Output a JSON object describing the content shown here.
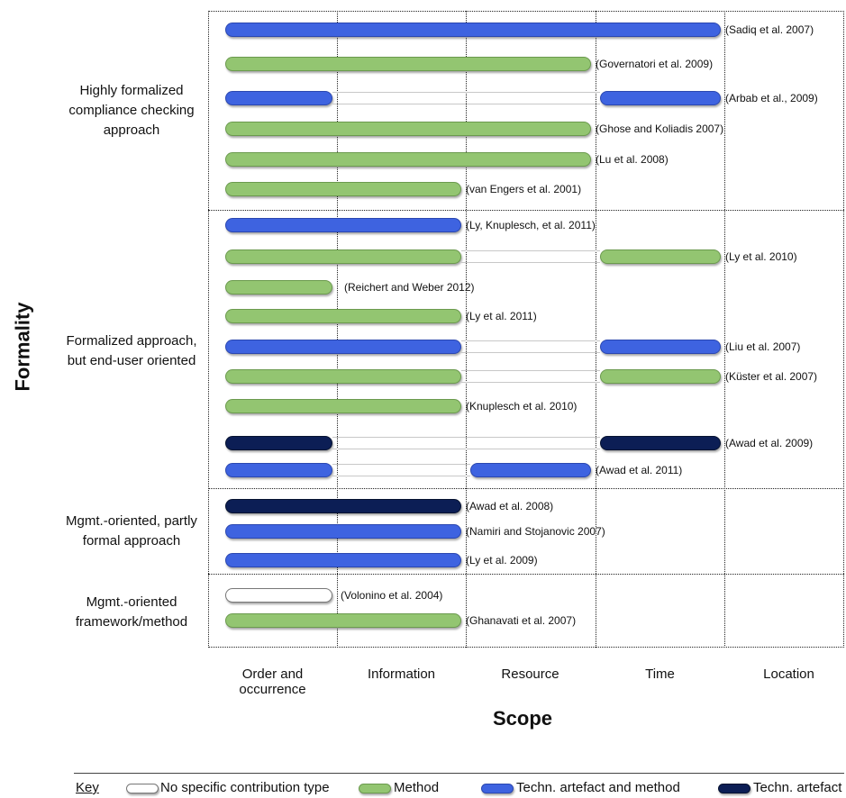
{
  "axes": {
    "y_title": "Formality",
    "x_title": "Scope",
    "columns": [
      "Order and occurrence",
      "Information",
      "Resource",
      "Time",
      "Location"
    ]
  },
  "groups": [
    {
      "label": "Highly formalized\ncompliance checking\napproach"
    },
    {
      "label": "Formalized approach,\nbut end-user oriented"
    },
    {
      "label": "Mgmt.-oriented, partly\nformal approach"
    },
    {
      "label": "Mgmt.-oriented\nframework/method"
    }
  ],
  "rows": [
    {
      "ref": "(Sadiq et al. 2007)",
      "type": "tam",
      "segments": [
        [
          1,
          4
        ]
      ]
    },
    {
      "ref": "(Governatori et al. 2009)",
      "type": "method",
      "segments": [
        [
          1,
          3
        ]
      ]
    },
    {
      "ref": "(Arbab et al., 2009)",
      "type": "tam",
      "segments": [
        [
          1,
          1
        ],
        [
          4,
          4
        ]
      ]
    },
    {
      "ref": "(Ghose and Koliadis 2007)",
      "type": "method",
      "segments": [
        [
          1,
          3
        ]
      ]
    },
    {
      "ref": "(Lu et al. 2008)",
      "type": "method",
      "segments": [
        [
          1,
          3
        ]
      ]
    },
    {
      "ref": "(van Engers et al. 2001)",
      "type": "method",
      "segments": [
        [
          1,
          2
        ]
      ]
    },
    {
      "ref": "(Ly, Knuplesch, et al. 2011)",
      "type": "tam",
      "segments": [
        [
          1,
          2
        ]
      ]
    },
    {
      "ref": "(Ly et al. 2010)",
      "type": "method",
      "segments": [
        [
          1,
          2
        ],
        [
          4,
          4
        ]
      ]
    },
    {
      "ref": "(Reichert and Weber 2012)",
      "type": "method",
      "segments": [
        [
          1,
          1
        ]
      ]
    },
    {
      "ref": "(Ly et al. 2011)",
      "type": "method",
      "segments": [
        [
          1,
          2
        ]
      ]
    },
    {
      "ref": "(Liu et al. 2007)",
      "type": "tam",
      "segments": [
        [
          1,
          2
        ],
        [
          4,
          4
        ]
      ]
    },
    {
      "ref": "(Küster et al. 2007)",
      "type": "method",
      "segments": [
        [
          1,
          2
        ],
        [
          4,
          4
        ]
      ]
    },
    {
      "ref": "(Knuplesch et al. 2010)",
      "type": "method",
      "segments": [
        [
          1,
          2
        ]
      ]
    },
    {
      "ref": "(Awad et al. 2009)",
      "type": "ta",
      "segments": [
        [
          1,
          1
        ],
        [
          4,
          4
        ]
      ]
    },
    {
      "ref": "(Awad et al. 2011)",
      "type": "tam",
      "segments": [
        [
          1,
          1
        ],
        [
          3,
          3
        ]
      ]
    },
    {
      "ref": "(Awad et al. 2008)",
      "type": "ta",
      "segments": [
        [
          1,
          2
        ]
      ]
    },
    {
      "ref": "(Namiri and Stojanovic 2007)",
      "type": "tam",
      "segments": [
        [
          1,
          2
        ]
      ]
    },
    {
      "ref": "(Ly et al. 2009)",
      "type": "tam",
      "segments": [
        [
          1,
          2
        ]
      ]
    },
    {
      "ref": "(Volonino et al. 2004)",
      "type": "none",
      "segments": [
        [
          1,
          1
        ]
      ]
    },
    {
      "ref": "(Ghanavati et al. 2007)",
      "type": "method",
      "segments": [
        [
          1,
          2
        ]
      ]
    }
  ],
  "key": {
    "title": "Key",
    "items": [
      {
        "label": "No specific contribution type",
        "type": "none"
      },
      {
        "label": "Method",
        "type": "method"
      },
      {
        "label": "Techn. artefact and method",
        "type": "tam"
      },
      {
        "label": "Techn. artefact",
        "type": "ta"
      }
    ]
  },
  "colors": {
    "method": "#93c571",
    "techn_artefact_and_method": "#3e63e0",
    "techn_artefact": "#0c1e55",
    "no_specific": "#ffffff"
  }
}
